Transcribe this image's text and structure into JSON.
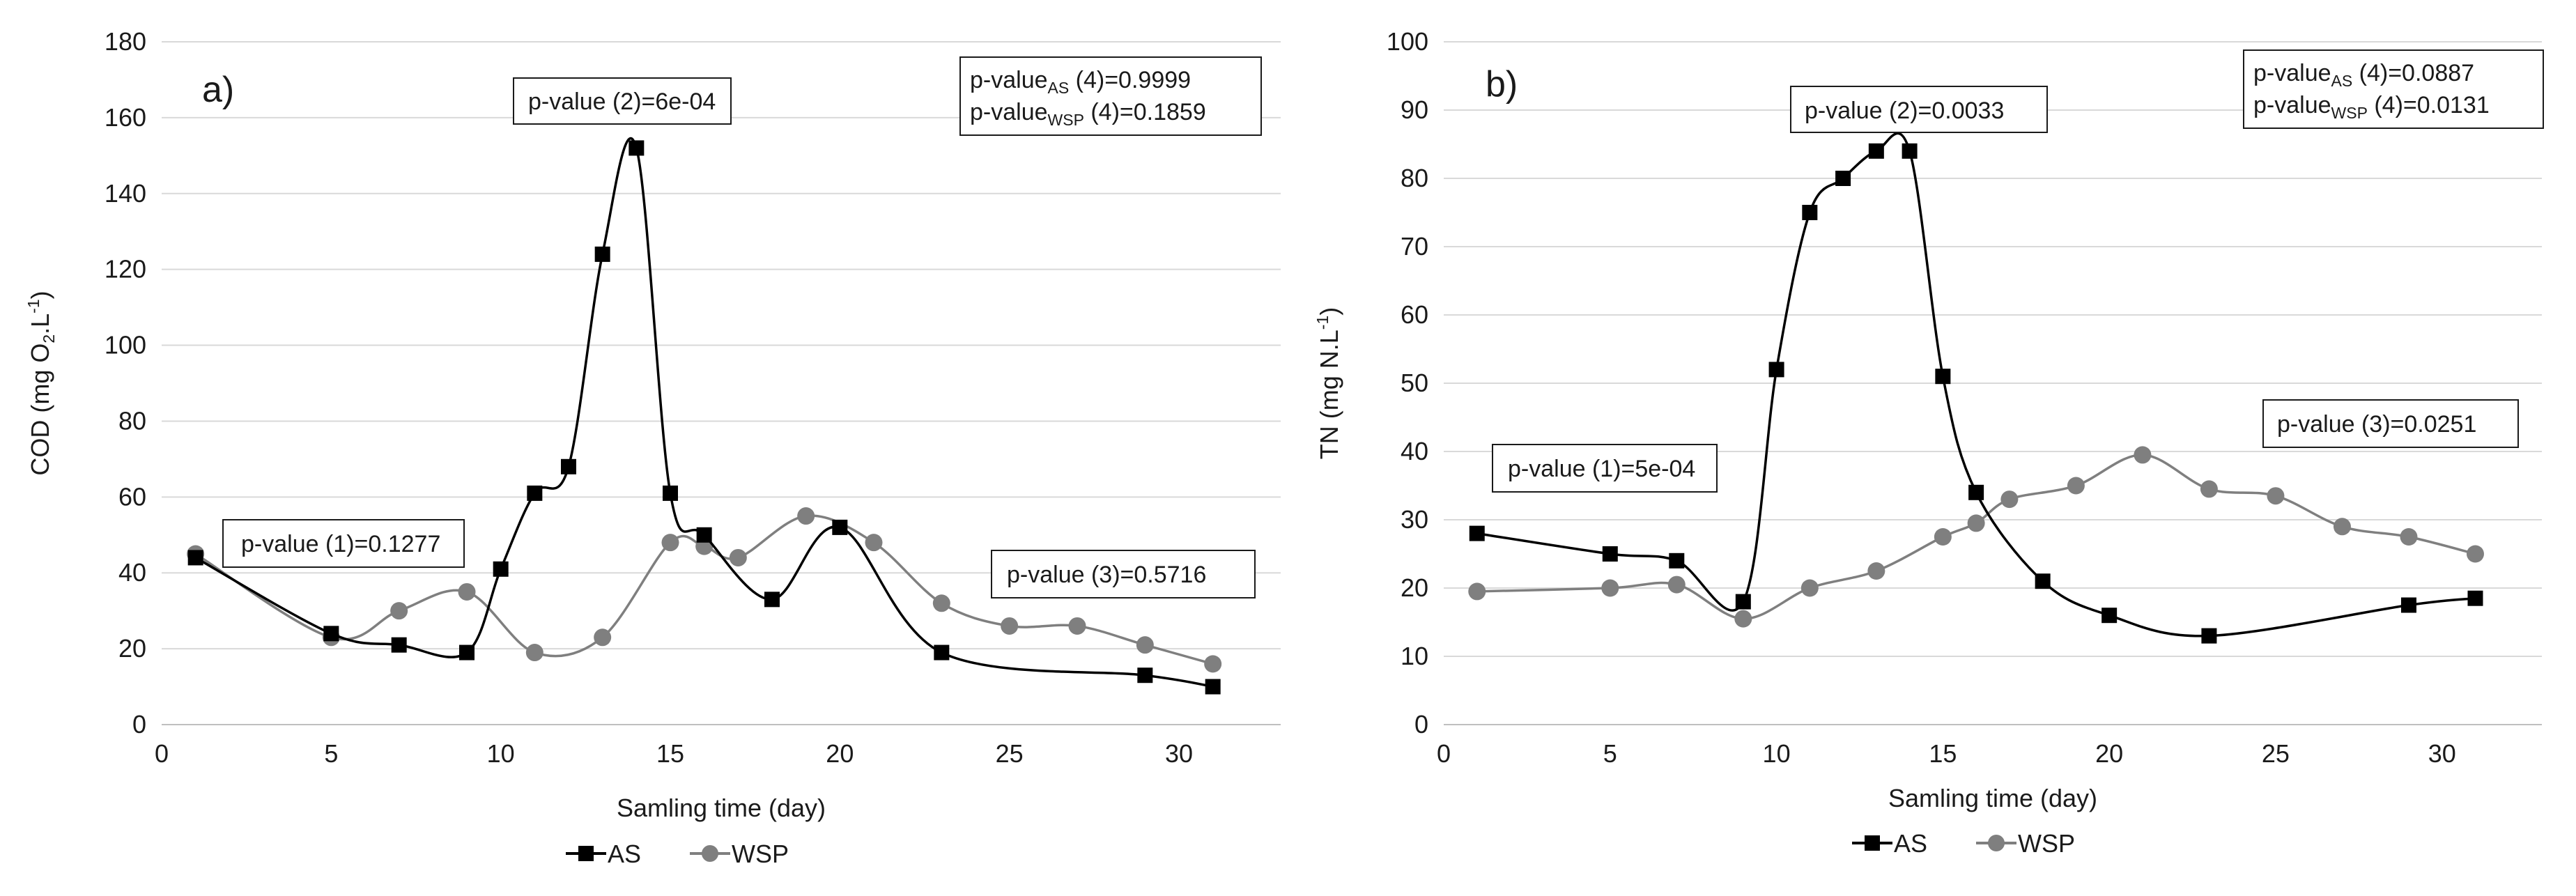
{
  "chart_data": [
    {
      "type": "line",
      "panel_label": "a)",
      "xlabel": "Samling time (day)",
      "ylabel_parts": [
        "COD (mg O",
        "2",
        ".L",
        "-1",
        ")"
      ],
      "xlim": [
        0,
        33
      ],
      "ylim": [
        0,
        180
      ],
      "xticks": [
        0,
        5,
        10,
        15,
        20,
        25,
        30
      ],
      "yticks": [
        0,
        20,
        40,
        60,
        80,
        100,
        120,
        140,
        160,
        180
      ],
      "grid": "horizontal",
      "series": [
        {
          "name": "AS",
          "marker": "square",
          "color": "#000000",
          "x": [
            1,
            5,
            7,
            9,
            10,
            11,
            12,
            13,
            14,
            15,
            16,
            18,
            20,
            23,
            29,
            31
          ],
          "y": [
            44,
            24,
            21,
            19,
            41,
            61,
            68,
            124,
            152,
            61,
            50,
            33,
            52,
            19,
            13,
            10
          ]
        },
        {
          "name": "WSP",
          "marker": "circle",
          "color": "#7f7f7f",
          "x": [
            1,
            5,
            7,
            9,
            11,
            13,
            15,
            16,
            17,
            19,
            21,
            23,
            25,
            27,
            29,
            31
          ],
          "y": [
            45,
            23,
            30,
            35,
            19,
            23,
            48,
            47,
            44,
            55,
            48,
            32,
            26,
            26,
            21,
            16
          ]
        }
      ],
      "annotations": [
        {
          "id": "p1",
          "text": "p-value (1)=0.1277"
        },
        {
          "id": "p2",
          "text": "p-value (2)=6e-04"
        },
        {
          "id": "p3",
          "text": "p-value (3)=0.5716"
        },
        {
          "id": "p4",
          "lines": [
            {
              "pre": "p-value",
              "sub": "AS",
              "post": " (4)=0.9999"
            },
            {
              "pre": "p-value",
              "sub": "WSP",
              "post": " (4)=0.1859"
            }
          ]
        }
      ]
    },
    {
      "type": "line",
      "panel_label": "b)",
      "xlabel": "Samling time (day)",
      "ylabel_parts": [
        "TN (mg N.L",
        "-1",
        ")"
      ],
      "xlim": [
        0,
        33
      ],
      "ylim": [
        0,
        100
      ],
      "xticks": [
        0,
        5,
        10,
        15,
        20,
        25,
        30
      ],
      "yticks": [
        0,
        10,
        20,
        30,
        40,
        50,
        60,
        70,
        80,
        90,
        100
      ],
      "grid": "horizontal",
      "series": [
        {
          "name": "AS",
          "marker": "square",
          "color": "#000000",
          "x": [
            1,
            5,
            7,
            9,
            10,
            11,
            12,
            13,
            14,
            15,
            16,
            18,
            20,
            23,
            29,
            31
          ],
          "y": [
            28,
            25,
            24,
            18,
            52,
            75,
            80,
            84,
            84,
            51,
            34,
            21,
            16,
            13,
            17.5,
            18.5
          ]
        },
        {
          "name": "WSP",
          "marker": "circle",
          "color": "#7f7f7f",
          "x": [
            1,
            5,
            7,
            9,
            11,
            13,
            15,
            16,
            17,
            19,
            21,
            23,
            25,
            27,
            29,
            31
          ],
          "y": [
            19.5,
            20,
            20.5,
            15.5,
            20,
            22.5,
            27.5,
            29.5,
            33,
            35,
            39.5,
            34.5,
            33.5,
            29,
            27.5,
            25
          ]
        }
      ],
      "annotations": [
        {
          "id": "p1",
          "text": "p-value (1)=5e-04"
        },
        {
          "id": "p2",
          "text": "p-value (2)=0.0033"
        },
        {
          "id": "p3",
          "text": "p-value (3)=0.0251"
        },
        {
          "id": "p4",
          "lines": [
            {
              "pre": "p-value",
              "sub": "AS",
              "post": " (4)=0.0887"
            },
            {
              "pre": "p-value",
              "sub": "WSP",
              "post": " (4)=0.0131"
            }
          ]
        }
      ]
    }
  ],
  "legend": {
    "items": [
      {
        "name": "AS",
        "marker": "square"
      },
      {
        "name": "WSP",
        "marker": "circle"
      }
    ]
  }
}
